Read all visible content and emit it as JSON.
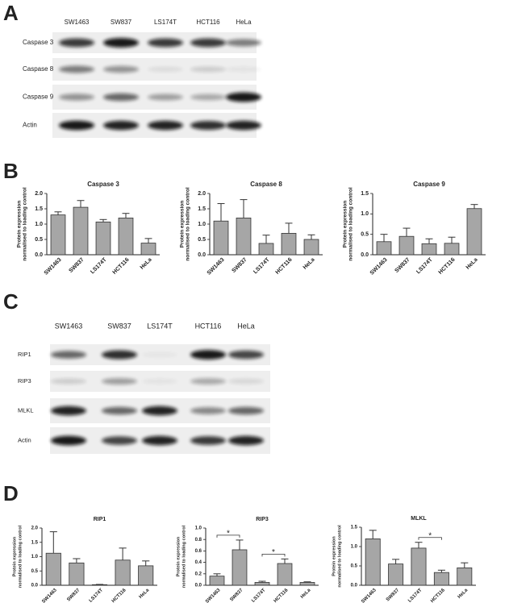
{
  "panels": [
    "A",
    "B",
    "C",
    "D"
  ],
  "blots": [
    {
      "lanes": [
        "SW1463",
        "SW837",
        "LS174T",
        "HCT116",
        "HeLa"
      ],
      "rows": [
        "Caspase 3",
        "Caspase 8",
        "Caspase 9",
        "Actin"
      ]
    },
    {
      "lanes": [
        "SW1463",
        "SW837",
        "LS174T",
        "HCT116",
        "HeLa"
      ],
      "rows": [
        "RIP1",
        "RIP3",
        "MLKL",
        "Actin"
      ]
    }
  ],
  "chart_data": [
    {
      "type": "bar",
      "title": "Caspase 3",
      "ylabel": [
        "Protein expression",
        "normalised to loading control"
      ],
      "categories": [
        "SW1463",
        "SW837",
        "LS174T",
        "HCT116",
        "HeLa"
      ],
      "values": [
        1.3,
        1.55,
        1.07,
        1.2,
        0.38
      ],
      "errors": [
        0.1,
        0.22,
        0.08,
        0.15,
        0.15
      ],
      "color": "#a6a6a6",
      "ylim": [
        0,
        2
      ],
      "yticks": [
        {
          "value": 0,
          "label": "0.0"
        },
        0.5,
        {
          "value": 1,
          "label": "1.0"
        },
        1.5,
        {
          "value": 2,
          "label": "2.0"
        }
      ]
    },
    {
      "type": "bar",
      "title": "Caspase 8",
      "ylabel": [
        "Protein expression",
        "normalised to loading control"
      ],
      "categories": [
        "SW1463",
        "SW837",
        "LS174T",
        "HCT116",
        "HeLa"
      ],
      "values": [
        1.1,
        1.2,
        0.37,
        0.7,
        0.5
      ],
      "errors": [
        0.57,
        0.6,
        0.27,
        0.33,
        0.15
      ],
      "color": "#a6a6a6",
      "ylim": [
        0,
        2
      ],
      "yticks": [
        {
          "value": 0,
          "label": "0.0"
        },
        0.5,
        {
          "value": 1,
          "label": "1.0"
        },
        1.5,
        {
          "value": 2,
          "label": "2.0"
        }
      ]
    },
    {
      "type": "bar",
      "title": "Caspase 9",
      "ylabel": [
        "Protein expression",
        "normalised to loading control"
      ],
      "categories": [
        "SW1463",
        "SW837",
        "LS174T",
        "HCT116",
        "HeLa"
      ],
      "values": [
        0.32,
        0.45,
        0.27,
        0.28,
        1.13
      ],
      "errors": [
        0.18,
        0.2,
        0.12,
        0.15,
        0.1
      ],
      "color": "#a6a6a6",
      "ylim": [
        0,
        1.5
      ],
      "yticks": [
        {
          "value": 0,
          "label": "0.0"
        },
        0.5,
        {
          "value": 1,
          "label": "1.0"
        },
        1.5
      ]
    },
    {
      "type": "bar",
      "title": "RIP1",
      "ylabel": [
        "Protein expression",
        "normalised to loading control"
      ],
      "categories": [
        "SW1463",
        "SW837",
        "LS174T",
        "HCT116",
        "HeLa"
      ],
      "values": [
        1.12,
        0.78,
        0.02,
        0.88,
        0.68
      ],
      "errors": [
        0.75,
        0.15,
        0.01,
        0.42,
        0.17
      ],
      "color": "#a6a6a6",
      "ylim": [
        0,
        2
      ],
      "yticks": [
        {
          "value": 0,
          "label": "0.0"
        },
        0.5,
        {
          "value": 1,
          "label": "1.0"
        },
        1.5,
        {
          "value": 2,
          "label": "2.0"
        }
      ]
    },
    {
      "type": "bar",
      "title": "RIP3",
      "ylabel": [
        "Protein expression",
        "normalised to loading control"
      ],
      "categories": [
        "SW1463",
        "SW837",
        "LS174T",
        "HCT116",
        "HeLa"
      ],
      "values": [
        0.16,
        0.62,
        0.05,
        0.38,
        0.05
      ],
      "errors": [
        0.04,
        0.17,
        0.02,
        0.08,
        0.01
      ],
      "color": "#a6a6a6",
      "ylim": [
        0,
        1
      ],
      "yticks": [
        {
          "value": 0,
          "label": "0.0"
        },
        0.2,
        0.4,
        0.6,
        0.8,
        {
          "value": 1,
          "label": "1.0"
        }
      ],
      "annotations": [
        {
          "label": "*",
          "between": [
            "SW1463",
            "SW837"
          ]
        },
        {
          "label": "*",
          "between": [
            "LS174T",
            "HCT116"
          ]
        }
      ]
    },
    {
      "type": "bar",
      "title": "MLKL",
      "ylabel": [
        "Protein expression",
        "normalised to loading control"
      ],
      "categories": [
        "SW1463",
        "SW837",
        "LS174T",
        "HCT116",
        "HeLa"
      ],
      "values": [
        1.2,
        0.55,
        0.96,
        0.33,
        0.45
      ],
      "errors": [
        0.22,
        0.12,
        0.15,
        0.06,
        0.13
      ],
      "color": "#a6a6a6",
      "ylim": [
        0,
        1.5
      ],
      "yticks": [
        {
          "value": 0,
          "label": "0.0"
        },
        0.5,
        {
          "value": 1,
          "label": "1.0"
        },
        1.5
      ],
      "annotations": [
        {
          "label": "*",
          "between": [
            "LS174T",
            "HCT116"
          ]
        }
      ]
    }
  ]
}
